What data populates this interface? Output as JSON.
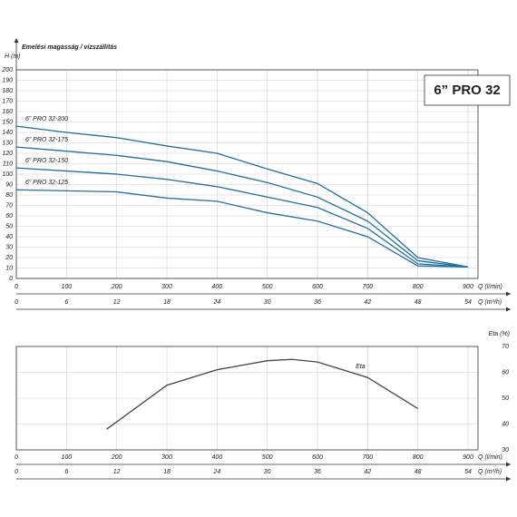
{
  "chart_data": [
    {
      "type": "line",
      "title": "Emelési magasság / vízszállítás",
      "ylabel": "H (m)",
      "model": "6” PRO 32",
      "xlabel": "Q (l/min)",
      "x2label": "Q (m³/h)",
      "x": [
        0,
        100,
        200,
        300,
        400,
        500,
        600,
        700,
        800,
        900
      ],
      "xlim": [
        0,
        900
      ],
      "xticks": [
        0,
        100,
        200,
        300,
        400,
        500,
        600,
        700,
        800,
        900
      ],
      "x2lim": [
        0,
        54
      ],
      "x2ticks": [
        0,
        6,
        12,
        18,
        24,
        30,
        36,
        42,
        48,
        54
      ],
      "ylim": [
        0,
        200
      ],
      "yticks": [
        0,
        10,
        20,
        30,
        40,
        50,
        60,
        70,
        80,
        90,
        100,
        110,
        120,
        130,
        140,
        150,
        160,
        170,
        180,
        190,
        200
      ],
      "grid": true,
      "series": [
        {
          "name": "6” PRO 32-200",
          "color": "#1f6f9f",
          "values": [
            146,
            140,
            135,
            127,
            120,
            105,
            91,
            63,
            20,
            11
          ]
        },
        {
          "name": "6” PRO 32-175",
          "color": "#1f6f9f",
          "values": [
            126,
            122,
            118,
            112,
            103,
            92,
            78,
            55,
            17,
            11
          ]
        },
        {
          "name": "6” PRO 32-150",
          "color": "#1f6f9f",
          "values": [
            106,
            103,
            100,
            95,
            88,
            78,
            68,
            48,
            14,
            11
          ]
        },
        {
          "name": "6” PRO 32-125",
          "color": "#1f6f9f",
          "values": [
            85,
            84,
            83,
            77,
            74,
            63,
            55,
            40,
            12,
            11
          ]
        }
      ]
    },
    {
      "type": "line",
      "ylabel": "Eta (%)",
      "xlabel": "Q (l/min)",
      "x2label": "Q (m³/h)",
      "x": [
        180,
        300,
        400,
        500,
        550,
        600,
        700,
        800
      ],
      "xlim": [
        0,
        900
      ],
      "xticks": [
        0,
        100,
        200,
        300,
        400,
        500,
        600,
        700,
        800,
        900
      ],
      "x2lim": [
        0,
        54
      ],
      "x2ticks": [
        0,
        6,
        12,
        18,
        24,
        30,
        36,
        42,
        48,
        54
      ],
      "ylim": [
        30,
        70
      ],
      "yticks": [
        30,
        40,
        50,
        60,
        70
      ],
      "y_axis_side": "right",
      "grid": true,
      "series": [
        {
          "name": "Eta",
          "color": "#444444",
          "values": [
            38,
            55,
            61,
            64.5,
            65,
            64,
            58,
            46
          ]
        }
      ]
    }
  ]
}
